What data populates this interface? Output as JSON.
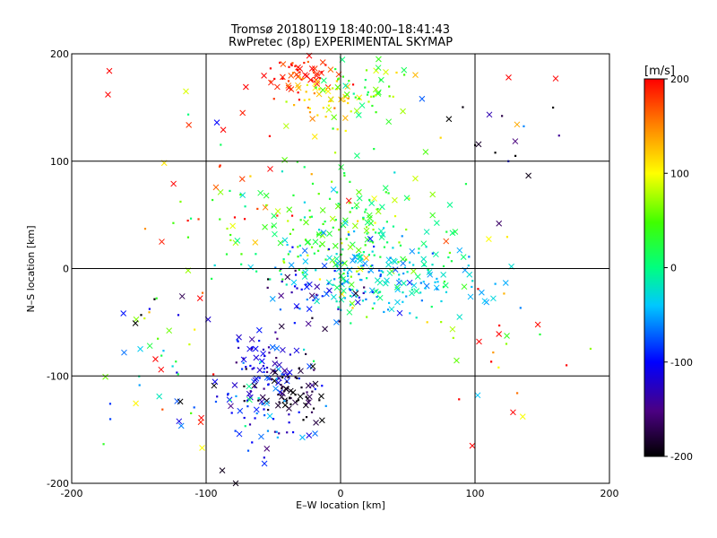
{
  "chart_data": {
    "type": "scatter",
    "title": "Tromsø 20180119 18:40:00–18:41:43",
    "subtitle": "RwPretec (8p) EXPERIMENTAL SKYMAP",
    "xlabel": "E–W location [km]",
    "ylabel": "N–S location [km]",
    "xlim": [
      -200,
      200
    ],
    "ylim": [
      -200,
      200
    ],
    "x_ticks": [
      -200,
      -100,
      0,
      100,
      200
    ],
    "y_ticks": [
      -200,
      -100,
      0,
      100,
      200
    ],
    "x_tick_labels": [
      "-200",
      "-100",
      "0",
      "100",
      "200"
    ],
    "y_tick_labels": [
      "-200",
      "-100",
      "0",
      "100",
      "200"
    ],
    "grid": true,
    "colorbar": {
      "label": "[m/s]",
      "range": [
        -200,
        200
      ],
      "ticks": [
        -200,
        -100,
        0,
        100,
        200
      ],
      "tick_labels": [
        "-200",
        "-100",
        "0",
        "100",
        "200"
      ],
      "placement": "right"
    },
    "clusters": [
      {
        "x": -28,
        "y": 182,
        "sx": 18,
        "sy": 12,
        "n": 60,
        "v": 190,
        "vs": 20
      },
      {
        "x": -10,
        "y": 155,
        "sx": 16,
        "sy": 12,
        "n": 50,
        "v": 110,
        "vs": 30
      },
      {
        "x": 15,
        "y": 165,
        "sx": 20,
        "sy": 14,
        "n": 50,
        "v": 50,
        "vs": 35
      },
      {
        "x": 0,
        "y": 30,
        "sx": 40,
        "sy": 28,
        "n": 220,
        "v": 30,
        "vs": 40
      },
      {
        "x": 30,
        "y": -8,
        "sx": 35,
        "sy": 18,
        "n": 180,
        "v": -40,
        "vs": 25
      },
      {
        "x": -55,
        "y": -95,
        "sx": 18,
        "sy": 22,
        "n": 80,
        "v": -110,
        "vs": 25
      },
      {
        "x": -35,
        "y": -115,
        "sx": 14,
        "sy": 14,
        "n": 70,
        "v": -185,
        "vs": 15
      },
      {
        "x": -60,
        "y": -130,
        "sx": 20,
        "sy": 22,
        "n": 60,
        "v": -70,
        "vs": 50
      },
      {
        "x": -140,
        "y": -90,
        "sx": 25,
        "sy": 40,
        "n": 45,
        "v": -20,
        "vs": 130
      },
      {
        "x": -20,
        "y": -20,
        "sx": 25,
        "sy": 20,
        "n": 40,
        "v": -130,
        "vs": 50
      },
      {
        "x": 110,
        "y": -60,
        "sx": 30,
        "sy": 50,
        "n": 25,
        "v": 130,
        "vs": 90
      },
      {
        "x": -60,
        "y": 70,
        "sx": 40,
        "sy": 40,
        "n": 40,
        "v": 140,
        "vs": 80
      },
      {
        "x": 120,
        "y": 120,
        "sx": 40,
        "sy": 30,
        "n": 14,
        "v": -120,
        "vs": 110
      }
    ],
    "explicit_points": [
      {
        "x": -172,
        "y": 184,
        "v": 200,
        "m": "x"
      },
      {
        "x": -173,
        "y": 162,
        "v": 200,
        "m": "x"
      },
      {
        "x": -115,
        "y": 165,
        "v": 90,
        "m": "x"
      },
      {
        "x": 125,
        "y": 178,
        "v": 200,
        "m": "x"
      },
      {
        "x": 160,
        "y": 177,
        "v": 200,
        "m": "x"
      },
      {
        "x": -92,
        "y": 136,
        "v": -100,
        "m": "x"
      },
      {
        "x": -133,
        "y": 25,
        "v": 190,
        "m": "x"
      },
      {
        "x": 100,
        "y": 115,
        "v": -200,
        "m": "d"
      },
      {
        "x": 115,
        "y": 108,
        "v": -200,
        "m": "d"
      },
      {
        "x": 130,
        "y": 105,
        "v": -200,
        "m": "d"
      },
      {
        "x": 158,
        "y": 150,
        "v": -200,
        "m": "d"
      },
      {
        "x": 98,
        "y": -165,
        "v": 200,
        "m": "x"
      },
      {
        "x": 102,
        "y": -118,
        "v": -40,
        "m": "x"
      },
      {
        "x": 103,
        "y": -68,
        "v": 200,
        "m": "x"
      },
      {
        "x": -104,
        "y": -143,
        "v": 190,
        "m": "x"
      },
      {
        "x": -103,
        "y": -167,
        "v": 100,
        "m": "x"
      },
      {
        "x": -88,
        "y": -188,
        "v": -190,
        "m": "x"
      },
      {
        "x": -78,
        "y": -200,
        "v": -190,
        "m": "x"
      },
      {
        "x": 168,
        "y": -90,
        "v": 200,
        "m": "d"
      }
    ]
  }
}
